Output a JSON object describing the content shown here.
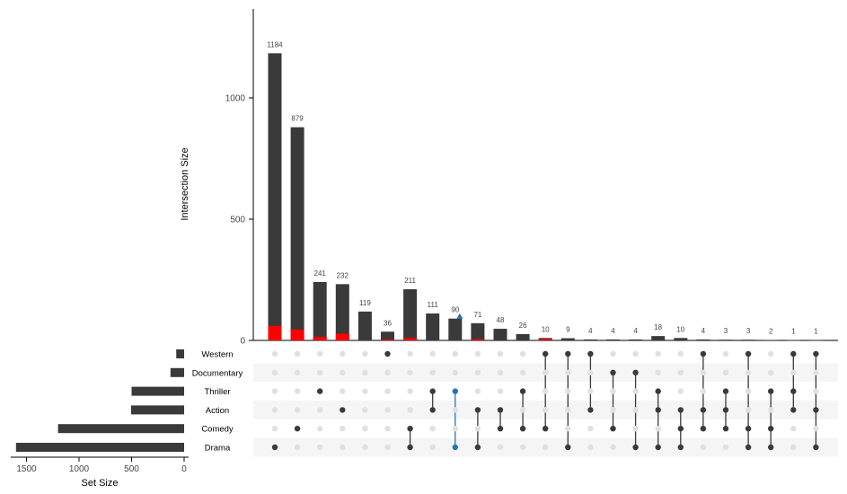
{
  "chart_data": {
    "type": "upset",
    "ylabel": "Intersection Size",
    "xlabel_sets": "Set Size",
    "intersection_ylim": [
      0,
      1350
    ],
    "intersection_yticks": [
      0,
      500,
      1000
    ],
    "set_size_xlim": [
      0,
      1650
    ],
    "set_size_ticks": [
      0,
      500,
      1000,
      1500
    ],
    "sets": [
      "Western",
      "Documentary",
      "Thriller",
      "Action",
      "Comedy",
      "Drama"
    ],
    "set_sizes": [
      75,
      130,
      500,
      505,
      1200,
      1600
    ],
    "intersections": [
      {
        "sets": [
          "Drama"
        ],
        "size": 1184,
        "highlight": 60
      },
      {
        "sets": [
          "Comedy"
        ],
        "size": 879,
        "highlight": 45
      },
      {
        "sets": [
          "Thriller"
        ],
        "size": 241,
        "highlight": 15
      },
      {
        "sets": [
          "Action"
        ],
        "size": 232,
        "highlight": 28
      },
      {
        "sets": [],
        "size": 119,
        "highlight": 0
      },
      {
        "sets": [
          "Western"
        ],
        "size": 36,
        "highlight": 4
      },
      {
        "sets": [
          "Comedy",
          "Drama"
        ],
        "size": 211,
        "highlight": 10
      },
      {
        "sets": [
          "Thriller",
          "Action"
        ],
        "size": 111,
        "highlight": 0
      },
      {
        "sets": [
          "Thriller",
          "Drama"
        ],
        "size": 90,
        "highlight": 0,
        "query": true
      },
      {
        "sets": [
          "Action",
          "Drama"
        ],
        "size": 71,
        "highlight": 5
      },
      {
        "sets": [
          "Action",
          "Comedy"
        ],
        "size": 48,
        "highlight": 0
      },
      {
        "sets": [
          "Thriller",
          "Comedy"
        ],
        "size": 26,
        "highlight": 0
      },
      {
        "sets": [
          "Western",
          "Comedy"
        ],
        "size": 10,
        "highlight": 6
      },
      {
        "sets": [
          "Western",
          "Drama"
        ],
        "size": 9,
        "highlight": 0
      },
      {
        "sets": [
          "Western",
          "Action"
        ],
        "size": 4,
        "highlight": 0
      },
      {
        "sets": [
          "Documentary",
          "Comedy"
        ],
        "size": 4,
        "highlight": 0
      },
      {
        "sets": [
          "Documentary",
          "Drama"
        ],
        "size": 4,
        "highlight": 0
      },
      {
        "sets": [
          "Thriller",
          "Action",
          "Drama"
        ],
        "size": 18,
        "highlight": 0
      },
      {
        "sets": [
          "Action",
          "Comedy",
          "Drama"
        ],
        "size": 10,
        "highlight": 0
      },
      {
        "sets": [
          "Western",
          "Action",
          "Comedy"
        ],
        "size": 4,
        "highlight": 0
      },
      {
        "sets": [
          "Thriller",
          "Action",
          "Comedy"
        ],
        "size": 3,
        "highlight": 0
      },
      {
        "sets": [
          "Western",
          "Comedy",
          "Drama"
        ],
        "size": 3,
        "highlight": 0
      },
      {
        "sets": [
          "Thriller",
          "Comedy",
          "Drama"
        ],
        "size": 2,
        "highlight": 0
      },
      {
        "sets": [
          "Western",
          "Thriller",
          "Action"
        ],
        "size": 1,
        "highlight": 0
      },
      {
        "sets": [
          "Western",
          "Action",
          "Drama"
        ],
        "size": 1,
        "highlight": 0
      }
    ],
    "colors": {
      "bar": "#3a3a3a",
      "highlight": "#ff0000",
      "query": "#1f77b4",
      "dot_active": "#3a3a3a",
      "dot_inactive": "#e0e0e0",
      "stripe": "#f5f5f5",
      "axis": "#000000",
      "tick_text": "#444444"
    }
  }
}
